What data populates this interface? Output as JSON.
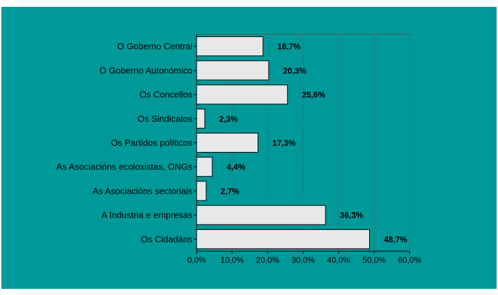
{
  "chart_data": {
    "type": "bar",
    "orientation": "horizontal",
    "categories": [
      "O Goberno Central",
      "O Goberno Autonómico",
      "Os Concellos",
      "Os Sindicatos",
      "Os Partidos políticos",
      "As Asociacións ecoloxistas, ONGs",
      "As Asociacións sectoriais",
      "A Industria e empresas",
      "Os Cidadáns"
    ],
    "values": [
      18.7,
      20.3,
      25.6,
      2.3,
      17.3,
      4.4,
      2.7,
      36.3,
      48.7
    ],
    "value_labels": [
      "18,7%",
      "20,3%",
      "25,6%",
      "2,3%",
      "17,3%",
      "4,4%",
      "2,7%",
      "36,3%",
      "48,7%"
    ],
    "xlim": [
      0,
      60
    ],
    "xticks": [
      0,
      10,
      20,
      30,
      40,
      50,
      60
    ],
    "xtick_labels": [
      "0,0%",
      "10,0%",
      "20,0%",
      "30,0%",
      "40,0%",
      "50,0%",
      "60,0%"
    ],
    "title": "",
    "xlabel": "",
    "ylabel": "",
    "grid": "vertical dashed",
    "colors": {
      "background": "#009999",
      "plot_area": "#009999",
      "bar_fill": "#e8e8e8",
      "bar_stroke": "#000000",
      "grid": "#5a5a5a"
    }
  }
}
